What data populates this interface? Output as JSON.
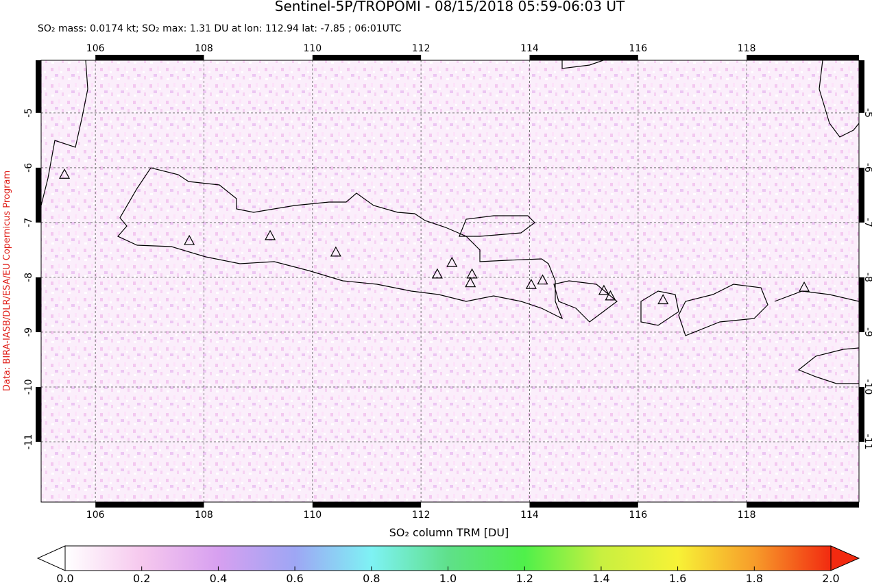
{
  "chart_data": {
    "type": "map",
    "title": "Sentinel-5P/TROPOMI - 08/15/2018 05:59-06:03 UT",
    "subtitle": "SO₂ mass: 0.0174 kt; SO₂ max: 1.31 DU at lon: 112.94 lat: -7.85 ; 06:01UTC",
    "credit": "Data: BIRA-IASB/DLR/ESA/EU Copernicus Program",
    "xlim": [
      105,
      120.07
    ],
    "ylim": [
      -12.1,
      -4.04
    ],
    "xticks": [
      106,
      108,
      110,
      112,
      114,
      116,
      118
    ],
    "yticks": [
      -5,
      -6,
      -7,
      -8,
      -9,
      -10,
      -11
    ],
    "grid": true,
    "volcanoes": {
      "lon": [
        105.43,
        107.73,
        109.22,
        110.43,
        112.3,
        112.57,
        112.94,
        112.91,
        114.03,
        114.24,
        115.37,
        115.49,
        116.46,
        119.06
      ],
      "lat": [
        -6.13,
        -7.34,
        -7.25,
        -7.55,
        -7.95,
        -7.74,
        -7.95,
        -8.11,
        -8.14,
        -8.06,
        -8.25,
        -8.35,
        -8.42,
        -8.19
      ]
    },
    "colorbar": {
      "label": "SO₂ column TRM [DU]",
      "lim": [
        0,
        2
      ],
      "ticks": [
        {
          "value": 0,
          "label": "0.0"
        },
        {
          "value": 0.2,
          "label": "0.2"
        },
        {
          "value": 0.4,
          "label": "0.4"
        },
        {
          "value": 0.6,
          "label": "0.6"
        },
        {
          "value": 0.8,
          "label": "0.8"
        },
        {
          "value": 1,
          "label": "1.0"
        },
        {
          "value": 1.2,
          "label": "1.2"
        },
        {
          "value": 1.4,
          "label": "1.4"
        },
        {
          "value": 1.6,
          "label": "1.6"
        },
        {
          "value": 1.8,
          "label": "1.8"
        },
        {
          "value": 2,
          "label": "2.0"
        }
      ],
      "colors": [
        "#ffffff",
        "#f6c8ee",
        "#d7a0f0",
        "#9ea6f4",
        "#7ef2f4",
        "#5fe08a",
        "#4ff04a",
        "#c8f040",
        "#f7f236",
        "#f79c2a",
        "#f22a10"
      ]
    }
  }
}
